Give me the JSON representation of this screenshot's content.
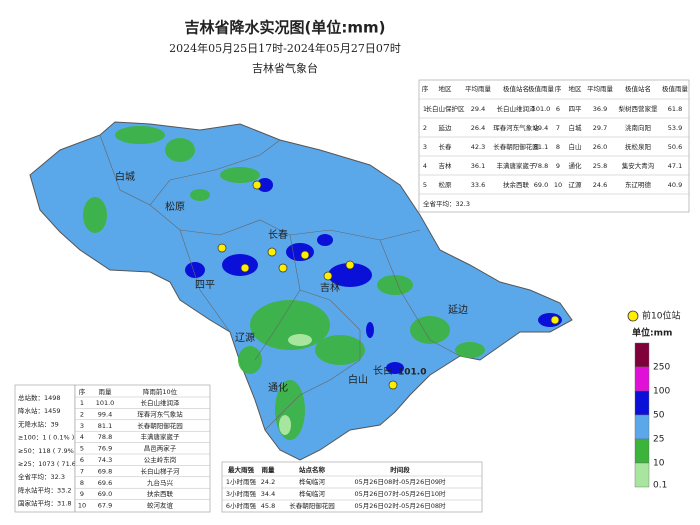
{
  "header": {
    "title": "吉林省降水实况图(单位:mm)",
    "subtitle": "2024年05月25日17时-2024年05月27日07时",
    "org": "吉林省气象台"
  },
  "region_table": {
    "columns": [
      "序",
      "地区",
      "平均雨量",
      "极值站名",
      "极值雨量",
      "序",
      "地区",
      "平均雨量",
      "极值站名",
      "极值雨量"
    ],
    "rows": [
      [
        "1",
        "长白山保护区",
        "29.4",
        "长白山维润泽",
        "101.0",
        "6",
        "四平",
        "36.9",
        "梨树西营家堡",
        "61.8"
      ],
      [
        "2",
        "延边",
        "26.4",
        "珲春河东气象站",
        "99.4",
        "7",
        "白城",
        "29.7",
        "洮南向阳",
        "53.9"
      ],
      [
        "3",
        "长春",
        "42.3",
        "长春朝阳御花园",
        "81.1",
        "8",
        "白山",
        "26.0",
        "抚松泉阳",
        "50.6"
      ],
      [
        "4",
        "吉林",
        "36.1",
        "丰满唐家崴子",
        "78.8",
        "9",
        "通化",
        "25.8",
        "集安大青沟",
        "47.1"
      ],
      [
        "5",
        "松原",
        "33.6",
        "扶余西联",
        "69.0",
        "10",
        "辽源",
        "24.6",
        "东辽明德",
        "40.9"
      ]
    ],
    "footer": "全省平均：32.3"
  },
  "stats": [
    "总站数：1498",
    "降水站：1459",
    "无降水站：39",
    "≥100：1 ( 0.1% )",
    "≥50：118 ( 7.9% )",
    "≥25：1073 ( 71.6% )",
    "全省平均：32.3",
    "降水站平均：33.2",
    "国家站平均：31.8"
  ],
  "top10_table": {
    "columns": [
      "序",
      "雨量",
      "降雨前10位"
    ],
    "rows": [
      [
        "1",
        "101.0",
        "长白山维润泽"
      ],
      [
        "2",
        "99.4",
        "珲春河东气象站"
      ],
      [
        "3",
        "81.1",
        "长春朝阳御花园"
      ],
      [
        "4",
        "78.8",
        "丰满唐家崴子"
      ],
      [
        "5",
        "76.9",
        "昌邑两家子"
      ],
      [
        "6",
        "74.3",
        "公主岭东岗"
      ],
      [
        "7",
        "69.8",
        "长白山梯子河"
      ],
      [
        "8",
        "69.6",
        "九台马兴"
      ],
      [
        "9",
        "69.0",
        "扶余西联"
      ],
      [
        "10",
        "67.9",
        "蛟河友谊"
      ]
    ]
  },
  "intensity_table": {
    "columns": [
      "最大雨强",
      "雨量",
      "站点名称",
      "时间段"
    ],
    "rows": [
      [
        "1小时雨强",
        "24.2",
        "桦甸临河",
        "05月26日08时-05月26日09时"
      ],
      [
        "3小时雨强",
        "34.4",
        "桦甸临河",
        "05月26日07时-05月26日10时"
      ],
      [
        "6小时雨强",
        "45.8",
        "长春朝阳御花园",
        "05月26日02时-05月26日08时"
      ]
    ]
  },
  "map": {
    "labels": [
      "白城",
      "松原",
      "长春",
      "四平",
      "吉林",
      "辽源",
      "延边",
      "通化",
      "白山",
      "长白"
    ],
    "annotation": "101.0"
  },
  "legend": {
    "marker_label": "前10位站",
    "unit": "单位:mm",
    "levels": [
      "250",
      "100",
      "50",
      "25",
      "10",
      "0.1"
    ],
    "colors": [
      "#80003c",
      "#e010d8",
      "#0a10d8",
      "#5aa8ea",
      "#3cb43c",
      "#a8e6a0"
    ]
  }
}
